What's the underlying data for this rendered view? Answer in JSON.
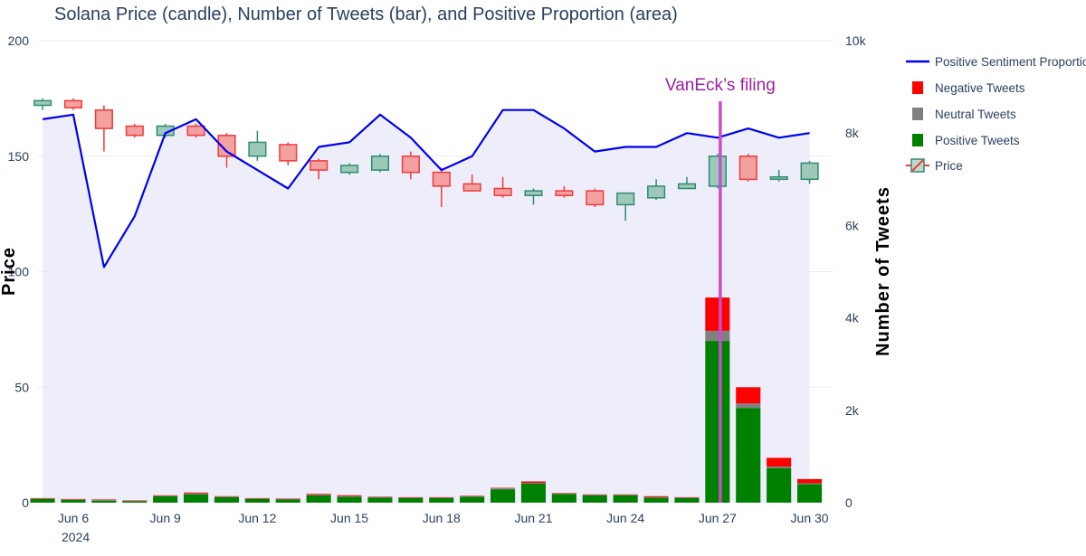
{
  "chart_data": {
    "type": "combo",
    "title": "Solana Price (candle), Number of Tweets (bar), and Positive Proportion (area)",
    "xlabel": "",
    "ylabel": "Price",
    "y2label": "Number of Tweets",
    "ylim": [
      0,
      200
    ],
    "y2lim": [
      0,
      10000
    ],
    "yticks": [
      "0",
      "50",
      "100",
      "150",
      "200"
    ],
    "y2ticks": [
      "0",
      "2k",
      "4k",
      "6k",
      "8k",
      "10k"
    ],
    "xticks": [
      "Jun 6",
      "Jun 9",
      "Jun 12",
      "Jun 15",
      "Jun 18",
      "Jun 21",
      "Jun 24",
      "Jun 27",
      "Jun 30"
    ],
    "xtick_days": [
      6,
      9,
      12,
      15,
      18,
      21,
      24,
      27,
      30
    ],
    "x_year": "2024",
    "days": [
      5,
      6,
      7,
      8,
      9,
      10,
      11,
      12,
      13,
      14,
      15,
      16,
      17,
      18,
      19,
      20,
      21,
      22,
      23,
      24,
      25,
      26,
      27,
      28,
      29,
      30
    ],
    "candles": [
      {
        "o": 172,
        "h": 175,
        "l": 170,
        "c": 174
      },
      {
        "o": 174,
        "h": 175,
        "l": 170,
        "c": 171
      },
      {
        "o": 170,
        "h": 172,
        "l": 152,
        "c": 162
      },
      {
        "o": 163,
        "h": 164,
        "l": 158,
        "c": 159
      },
      {
        "o": 159,
        "h": 164,
        "l": 158,
        "c": 163
      },
      {
        "o": 163,
        "h": 164,
        "l": 158,
        "c": 159
      },
      {
        "o": 159,
        "h": 160,
        "l": 145,
        "c": 150
      },
      {
        "o": 150,
        "h": 161,
        "l": 148,
        "c": 156
      },
      {
        "o": 155,
        "h": 156,
        "l": 146,
        "c": 148
      },
      {
        "o": 148,
        "h": 149,
        "l": 140,
        "c": 144
      },
      {
        "o": 143,
        "h": 147,
        "l": 142,
        "c": 146
      },
      {
        "o": 144,
        "h": 151,
        "l": 143,
        "c": 150
      },
      {
        "o": 150,
        "h": 152,
        "l": 140,
        "c": 143
      },
      {
        "o": 143,
        "h": 145,
        "l": 128,
        "c": 137
      },
      {
        "o": 138,
        "h": 142,
        "l": 135,
        "c": 135
      },
      {
        "o": 136,
        "h": 141,
        "l": 132,
        "c": 133
      },
      {
        "o": 133,
        "h": 136,
        "l": 129,
        "c": 135
      },
      {
        "o": 135,
        "h": 137,
        "l": 132,
        "c": 133
      },
      {
        "o": 135,
        "h": 136,
        "l": 128,
        "c": 129
      },
      {
        "o": 129,
        "h": 134,
        "l": 122,
        "c": 134
      },
      {
        "o": 132,
        "h": 140,
        "l": 131,
        "c": 137
      },
      {
        "o": 136,
        "h": 141,
        "l": 136,
        "c": 138
      },
      {
        "o": 137,
        "h": 151,
        "l": 136,
        "c": 150
      },
      {
        "o": 150,
        "h": 151,
        "l": 139,
        "c": 140
      },
      {
        "o": 140,
        "h": 144,
        "l": 139,
        "c": 141
      },
      {
        "o": 140,
        "h": 148,
        "l": 138,
        "c": 147
      }
    ],
    "series": [
      {
        "name": "Positive Tweets",
        "color": "#008000",
        "values": [
          80,
          60,
          40,
          30,
          140,
          180,
          120,
          80,
          70,
          160,
          130,
          110,
          100,
          100,
          130,
          290,
          410,
          190,
          160,
          160,
          110,
          100,
          3500,
          2050,
          750,
          400
        ]
      },
      {
        "name": "Neutral Tweets",
        "color": "#808080",
        "values": [
          10,
          10,
          20,
          10,
          10,
          20,
          10,
          10,
          10,
          10,
          10,
          10,
          10,
          10,
          10,
          20,
          20,
          10,
          10,
          10,
          10,
          10,
          220,
          100,
          30,
          20
        ]
      },
      {
        "name": "Negative Tweets",
        "color": "#ff0000",
        "values": [
          10,
          10,
          10,
          10,
          10,
          20,
          10,
          10,
          10,
          20,
          20,
          10,
          10,
          10,
          10,
          10,
          30,
          10,
          10,
          10,
          20,
          10,
          720,
          350,
          190,
          90
        ]
      },
      {
        "name": "Positive Sentiment Proportion",
        "color": "#0000ee",
        "values": [
          0.83,
          0.84,
          0.51,
          0.62,
          0.8,
          0.83,
          0.76,
          0.72,
          0.68,
          0.77,
          0.78,
          0.84,
          0.79,
          0.72,
          0.75,
          0.85,
          0.85,
          0.81,
          0.76,
          0.77,
          0.77,
          0.8,
          0.79,
          0.81,
          0.79,
          0.8
        ]
      }
    ],
    "legend": [
      "Positive Sentiment Proportion",
      "Negative Tweets",
      "Neutral Tweets",
      "Positive Tweets",
      "Price"
    ],
    "legend_position": "right",
    "annotations": [
      {
        "text": "VanEck’s filing",
        "day": 27,
        "color": "#c64ec8"
      }
    ],
    "colors": {
      "increasing": "#2e8b72",
      "decreasing": "#f03a3a",
      "area_fill": "#eeeefb",
      "grid": "#e8ecf2"
    }
  }
}
